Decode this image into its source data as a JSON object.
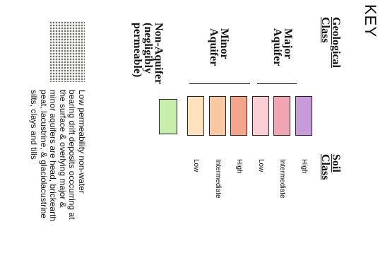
{
  "key": {
    "title": "KEY"
  },
  "headers": {
    "geological_class": "Geological Class",
    "soil_class": "Soil Class"
  },
  "classes": [
    {
      "id": "major",
      "line1": "Major",
      "line2": "Aquifer"
    },
    {
      "id": "minor",
      "line1": "Minor",
      "line2": "Aquifer"
    },
    {
      "id": "non",
      "line1": "Non-Aquifer",
      "line2": "(negligibly",
      "line3": "permeable)"
    }
  ],
  "swatches": [
    {
      "group": "major",
      "level": "High",
      "color": "#c79ad9"
    },
    {
      "group": "major",
      "level": "Intermediate",
      "color": "#f0a6b2"
    },
    {
      "group": "major",
      "level": "Low",
      "color": "#f9cfd5"
    },
    {
      "group": "minor",
      "level": "High",
      "color": "#f4a58c"
    },
    {
      "group": "minor",
      "level": "Intermediate",
      "color": "#f9c8a2"
    },
    {
      "group": "minor",
      "level": "Low",
      "color": "#fde2bd"
    },
    {
      "group": "non",
      "level": "",
      "color": "#c8eeae"
    }
  ],
  "non_aquifer_note": {
    "lines": [
      "Low permeability non-water",
      "bearing drift deposits occcurring at",
      "the surface & overlying major &",
      "minor aquifers are head, brickearth",
      "peat, lacustrine, & glaciolacustrine",
      "silts, clays and tills"
    ]
  },
  "pattern": "dotted-stipple"
}
